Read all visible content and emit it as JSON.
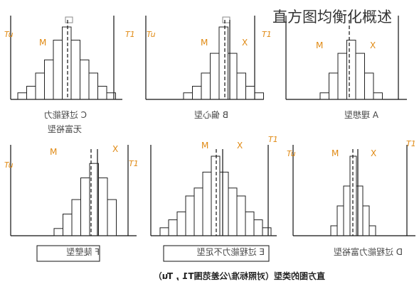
{
  "page_title": "直方图均衡化概述",
  "caption": "直方图的类型（对照标准/公差范围T1 , Tu）",
  "colors": {
    "axis": "#111111",
    "bar": "#222222",
    "orange": "#e08a14",
    "text": "#333333"
  },
  "panels": [
    {
      "left_tol": "Tu",
      "right_tol": "T1",
      "m_label": "M",
      "x_label": "",
      "caption_lines": [
        "C 过程能力",
        "无富裕型"
      ],
      "boxed": false,
      "has_top_marker": true,
      "bars": [
        1,
        2,
        4,
        6,
        9,
        11,
        9,
        6,
        4,
        2,
        1
      ]
    },
    {
      "left_tol": "Tu",
      "right_tol": "T1",
      "m_label": "M",
      "x_label": "X",
      "caption_lines": [
        "B 偏心型"
      ],
      "boxed": false,
      "has_top_marker": true,
      "bars": [
        1,
        2,
        4,
        7,
        11,
        7,
        4,
        2,
        1
      ]
    },
    {
      "left_tol": "Tu",
      "right_tol": "T1",
      "m_label": "M",
      "x_label": "X",
      "caption_lines": [
        "A 理想型"
      ],
      "boxed": false,
      "has_top_marker": false,
      "bars": [
        1,
        4,
        7,
        9,
        7,
        4,
        1
      ]
    },
    {
      "left_tol": "Tu",
      "right_tol": "T1",
      "m_label": "M",
      "x_label": "X",
      "caption_lines": [
        "F 陡壁型"
      ],
      "boxed": true,
      "has_top_marker": false,
      "bars": [
        1,
        3,
        5,
        8,
        10,
        8,
        5
      ]
    },
    {
      "left_tol": "",
      "right_tol": "T1",
      "m_label": "M",
      "x_label": "X",
      "caption_lines": [
        "E 过程能力不足型"
      ],
      "boxed": true,
      "has_top_marker": false,
      "bars": [
        1,
        2,
        3,
        5,
        6,
        8,
        10,
        8,
        6,
        5,
        3,
        2,
        1
      ]
    },
    {
      "left_tol": "Tu",
      "right_tol": "T1",
      "m_label": "M",
      "x_label": "X",
      "caption_lines": [
        "D 过程能力富裕型"
      ],
      "boxed": false,
      "has_top_marker": false,
      "bars": [
        1,
        3,
        5,
        8,
        5,
        3,
        1
      ]
    }
  ]
}
